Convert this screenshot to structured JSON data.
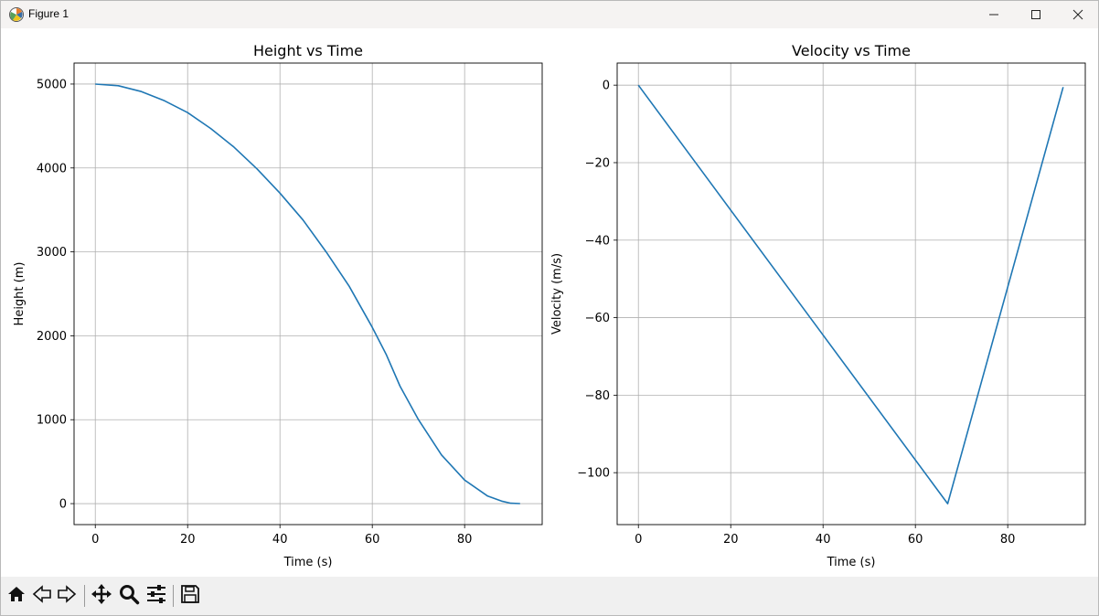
{
  "window": {
    "title": "Figure 1",
    "icons": {
      "app": "matplotlib-icon",
      "minimize": "minimize-icon",
      "maximize": "maximize-icon",
      "close": "close-icon"
    }
  },
  "toolbar": {
    "buttons": [
      "home-icon",
      "back-arrow-icon",
      "forward-arrow-icon",
      "pan-move-icon",
      "zoom-magnifier-icon",
      "configure-subplots-icon",
      "save-floppy-icon"
    ]
  },
  "colors": {
    "line": "#1f77b4",
    "grid": "#b0b0b0",
    "axis": "#000000"
  },
  "chart_data": [
    {
      "type": "line",
      "title": "Height vs Time",
      "xlabel": "Time (s)",
      "ylabel": "Height (m)",
      "xlim": [
        -4.6,
        96.8
      ],
      "ylim": [
        -250,
        5250
      ],
      "xticks": [
        0,
        20,
        40,
        60,
        80
      ],
      "yticks": [
        0,
        1000,
        2000,
        3000,
        4000,
        5000
      ],
      "grid": true,
      "series": [
        {
          "x": [
            0,
            5,
            10,
            15,
            20,
            25,
            30,
            35,
            40,
            45,
            50,
            55,
            60,
            63,
            66,
            70,
            75,
            80,
            85,
            88,
            90,
            92
          ],
          "values": [
            5000,
            4980,
            4910,
            4800,
            4660,
            4470,
            4250,
            3990,
            3700,
            3380,
            3000,
            2590,
            2100,
            1780,
            1400,
            1000,
            580,
            280,
            90,
            30,
            5,
            0
          ]
        }
      ]
    },
    {
      "type": "line",
      "title": "Velocity vs Time",
      "xlabel": "Time (s)",
      "ylabel": "Velocity (m/s)",
      "xlim": [
        -4.6,
        96.8
      ],
      "ylim": [
        -113.4,
        5.7
      ],
      "xticks": [
        0,
        20,
        40,
        60,
        80
      ],
      "yticks": [
        0,
        -20,
        -40,
        -60,
        -80,
        -100
      ],
      "grid": true,
      "series": [
        {
          "x": [
            0,
            67,
            92
          ],
          "values": [
            0,
            -108,
            -0.5
          ]
        }
      ]
    }
  ]
}
